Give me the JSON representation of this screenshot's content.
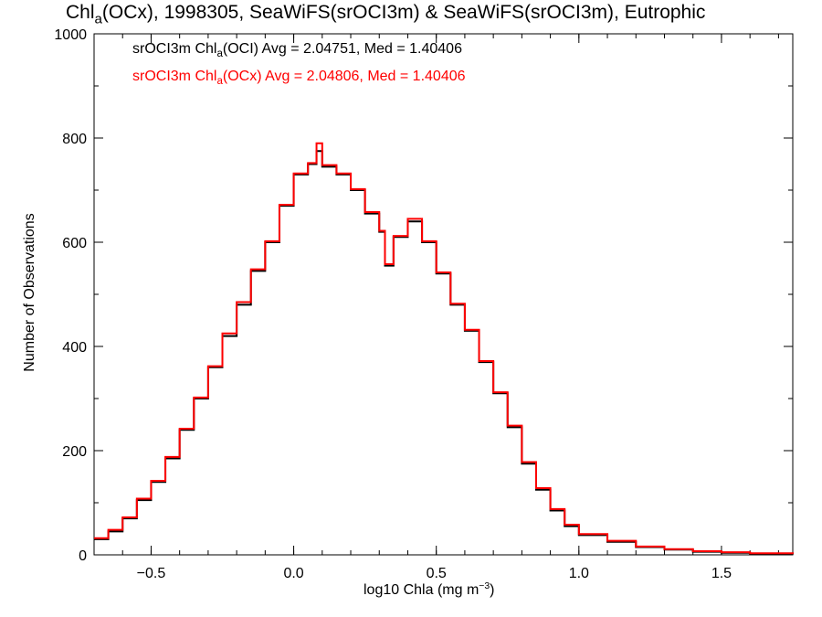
{
  "title": {
    "pre": "Chl",
    "sub": "a",
    "post": "(OCx), 1998305, SeaWiFS(srOCI3m) & SeaWiFS(srOCI3m), Eutrophic"
  },
  "legend": {
    "series1": "srOCI3m Chl",
    "series1_sub": "a",
    "series1_post": "(OCI) Avg = 2.04751, Med = 1.40406",
    "series2": "srOCI3m Chl",
    "series2_sub": "a",
    "series2_post": "(OCx) Avg = 2.04806, Med = 1.40406"
  },
  "xlabel": {
    "pre": "log10 Chla (mg m",
    "sup": "−3",
    "post": ")"
  },
  "ylabel": "Number of Observations",
  "chart_data": {
    "type": "line",
    "step": true,
    "xlim": [
      -0.7,
      1.75
    ],
    "ylim": [
      0,
      1000
    ],
    "xticks": [
      -0.5,
      0.0,
      0.5,
      1.0,
      1.5
    ],
    "xtick_labels": [
      "−0.5",
      "0.0",
      "0.5",
      "1.0",
      "1.5"
    ],
    "yticks": [
      0,
      200,
      400,
      600,
      800,
      1000
    ],
    "ytick_labels": [
      "0",
      "200",
      "400",
      "600",
      "800",
      "1000"
    ],
    "colors": {
      "series1": "#000000",
      "series2": "#ff0000"
    },
    "x": [
      -0.7,
      -0.65,
      -0.6,
      -0.55,
      -0.5,
      -0.45,
      -0.4,
      -0.35,
      -0.3,
      -0.25,
      -0.2,
      -0.15,
      -0.1,
      -0.05,
      0.0,
      0.05,
      0.08,
      0.1,
      0.15,
      0.2,
      0.25,
      0.3,
      0.32,
      0.35,
      0.4,
      0.45,
      0.5,
      0.55,
      0.6,
      0.65,
      0.7,
      0.75,
      0.8,
      0.85,
      0.9,
      0.95,
      1.0,
      1.1,
      1.2,
      1.3,
      1.4,
      1.5,
      1.6,
      1.75
    ],
    "series": [
      {
        "name": "srOCI3m Chla(OCI)",
        "values": [
          30,
          45,
          70,
          105,
          140,
          185,
          240,
          300,
          360,
          420,
          480,
          545,
          600,
          670,
          730,
          750,
          775,
          745,
          730,
          700,
          655,
          620,
          555,
          610,
          640,
          600,
          540,
          480,
          430,
          370,
          310,
          245,
          175,
          125,
          85,
          55,
          38,
          25,
          15,
          10,
          6,
          4,
          2,
          1
        ]
      },
      {
        "name": "srOCI3m Chla(OCx)",
        "values": [
          32,
          48,
          72,
          108,
          142,
          188,
          242,
          302,
          362,
          425,
          485,
          548,
          602,
          672,
          732,
          752,
          790,
          748,
          732,
          702,
          658,
          622,
          558,
          612,
          645,
          602,
          542,
          482,
          432,
          372,
          312,
          248,
          178,
          128,
          88,
          58,
          40,
          27,
          16,
          11,
          7,
          5,
          3,
          2
        ]
      }
    ]
  }
}
